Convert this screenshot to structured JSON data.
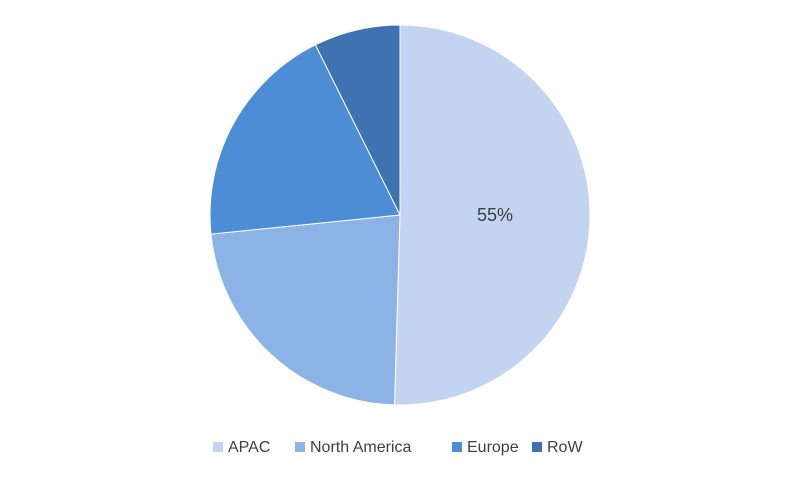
{
  "chart_data": {
    "type": "pie",
    "categories": [
      "APAC",
      "North America",
      "Europe",
      "RoW"
    ],
    "values": [
      55,
      25,
      21,
      8
    ],
    "value_labels": [
      "55%",
      null,
      null,
      null
    ],
    "colors": [
      "#c3d4f1",
      "#8cb3e6",
      "#4d8dd5",
      "#3f72b0"
    ],
    "legend": "bottom"
  }
}
